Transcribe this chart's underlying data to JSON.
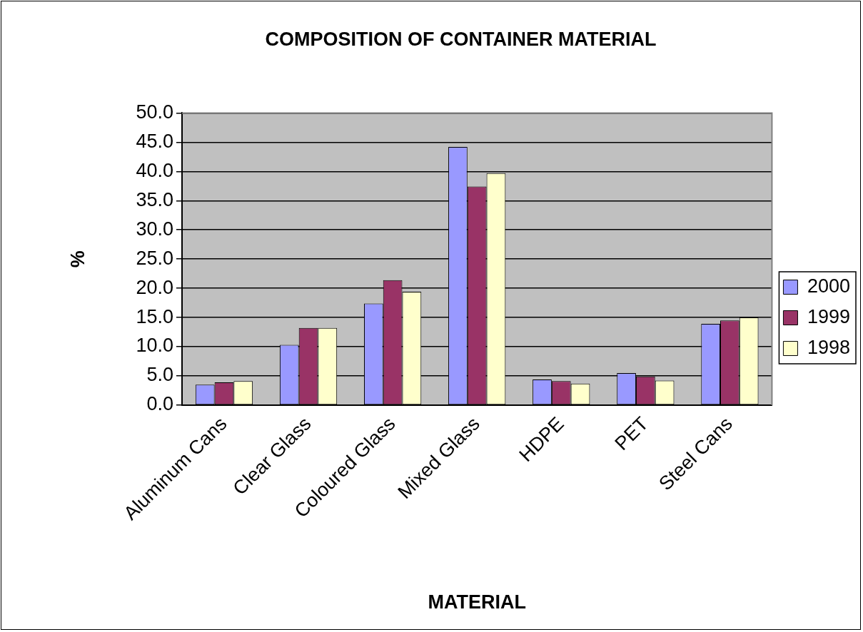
{
  "chart_data": {
    "type": "bar",
    "title": "COMPOSITION OF CONTAINER MATERIAL",
    "xlabel": "MATERIAL",
    "ylabel": "%",
    "categories": [
      "Aluminum Cans",
      "Clear Glass",
      "Coloured Glass",
      "Mixed Glass",
      "HDPE",
      "PET",
      "Steel Cans"
    ],
    "series": [
      {
        "name": "2000",
        "color": "#9999ff",
        "values": [
          3.5,
          10.3,
          17.4,
          44.2,
          4.4,
          5.5,
          13.9
        ]
      },
      {
        "name": "1999",
        "color": "#993366",
        "values": [
          3.9,
          13.2,
          21.4,
          37.4,
          4.1,
          4.9,
          14.5
        ]
      },
      {
        "name": "1998",
        "color": "#ffffcc",
        "values": [
          4.1,
          13.2,
          19.4,
          39.7,
          3.7,
          4.2,
          15.0
        ]
      }
    ],
    "ylim": [
      0,
      50
    ],
    "yticks": [
      {
        "value": 0,
        "label": "0.0"
      },
      {
        "value": 5,
        "label": "5.0"
      },
      {
        "value": 10,
        "label": "10.0"
      },
      {
        "value": 15,
        "label": "15.0"
      },
      {
        "value": 20,
        "label": "20.0"
      },
      {
        "value": 25,
        "label": "25.0"
      },
      {
        "value": 30,
        "label": "30.0"
      },
      {
        "value": 35,
        "label": "35.0"
      },
      {
        "value": 40,
        "label": "40.0"
      },
      {
        "value": 45,
        "label": "45.0"
      },
      {
        "value": 50,
        "label": "50.0"
      }
    ],
    "grid": "y",
    "legend": "right"
  }
}
